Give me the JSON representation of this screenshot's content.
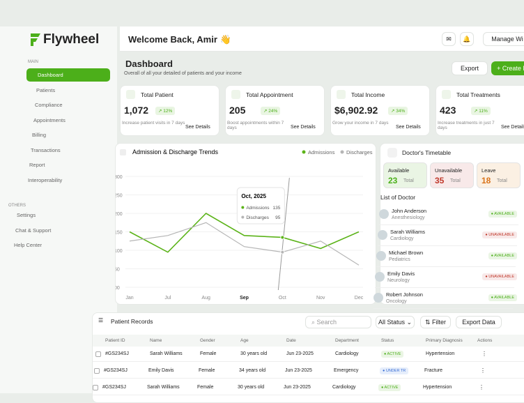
{
  "sidebar": {
    "logo": "Flywheel",
    "main_label": "MAIN",
    "main_items": [
      "Dashboard",
      "Patients",
      "Compliance",
      "Appointments",
      "Billing",
      "Transactions",
      "Report",
      "Interoperability"
    ],
    "others_label": "OTHERS",
    "other_items": [
      "Settings",
      "Chat & Support",
      "Help Center"
    ]
  },
  "header": {
    "greeting": "Welcome Back, Amir 👋",
    "manage": "Manage Wi"
  },
  "page": {
    "title": "Dashboard",
    "subtitle": "Overall of all your detailed of patients and your income",
    "export": "Export",
    "create": "Create N"
  },
  "stats": [
    {
      "label": "Total Patient",
      "value": "1,072",
      "change": "12%",
      "note": "Increase patient visits in 7 days",
      "link": "See Details"
    },
    {
      "label": "Total Appointment",
      "value": "205",
      "change": "24%",
      "note": "Boost appointments within 7 days",
      "link": "See Details"
    },
    {
      "label": "Total Income",
      "value": "$6,902.92",
      "change": "34%",
      "note": "Grow your income in 7 days",
      "link": "See Details"
    },
    {
      "label": "Total Treatments",
      "value": "423",
      "change": "11%",
      "note": "Increase treatments in just 7 days",
      "link": "See Details"
    }
  ],
  "chart_data": {
    "type": "line",
    "title": "Admission & Discharge Trends",
    "categories": [
      "Jan",
      "Jul",
      "Aug",
      "Sep",
      "Oct",
      "Nov",
      "Dec"
    ],
    "series": [
      {
        "name": "Admissions",
        "color": "#5bb318",
        "values": [
          150,
          95,
          200,
          140,
          135,
          105,
          150
        ]
      },
      {
        "name": "Discharges",
        "color": "#b5b5b5",
        "values": [
          125,
          140,
          175,
          110,
          95,
          125,
          60
        ]
      }
    ],
    "ylim": [
      0,
      300
    ],
    "yticks": [
      {
        "value": 0,
        "label": "00"
      },
      50,
      100,
      150,
      200,
      250,
      300
    ],
    "tooltip": {
      "title": "Oct, 2025"
    }
  },
  "timetable": {
    "title": "Doctor's Timetable",
    "summary": [
      {
        "label": "Available",
        "value": 23,
        "unit": "Total"
      },
      {
        "label": "Unavailable",
        "value": 35,
        "unit": "Total"
      },
      {
        "label": "Leave",
        "value": 18,
        "unit": "Total"
      }
    ],
    "list_title": "List of Doctor",
    "doctors": [
      {
        "name": "John Anderson",
        "specialty": "Anesthesiology",
        "status": "AVAILABLE"
      },
      {
        "name": "Sarah Williams",
        "specialty": "Cardiology",
        "status": "UNAVAILABLE"
      },
      {
        "name": "Michael Brown",
        "specialty": "Pediatrics",
        "status": "AVAILABLE"
      },
      {
        "name": "Emily Davis",
        "specialty": "Neurology",
        "status": "UNAVAILABLE"
      },
      {
        "name": "Robert Johnson",
        "specialty": "Oncology",
        "status": "AVAILABLE"
      }
    ]
  },
  "records": {
    "title": "Patient Records",
    "search": "Search",
    "status_filter": "All Status",
    "filter": "Filter",
    "export": "Export Data",
    "columns": [
      "Patient ID",
      "Name",
      "Gender",
      "Age",
      "Date",
      "Department",
      "Status",
      "Primary Diagnosis",
      "Actions"
    ],
    "rows": [
      [
        "#GS234SJ",
        "Sarah Williams",
        "Female",
        "30 years old",
        "Jun 23-2025",
        "Cardiology",
        "ACTIVE",
        "Hypertension"
      ],
      [
        "#GS234SJ",
        "Emily Davis",
        "Female",
        "34 years old",
        "Jun 23-2025",
        "Emergency",
        "UNDER TR",
        "Fracture"
      ],
      [
        "#GS234SJ",
        "Sarah Williams",
        "Female",
        "30 years old",
        "Jun 23-2025",
        "Cardiology",
        "ACTIVE",
        "Hypertension"
      ]
    ]
  }
}
